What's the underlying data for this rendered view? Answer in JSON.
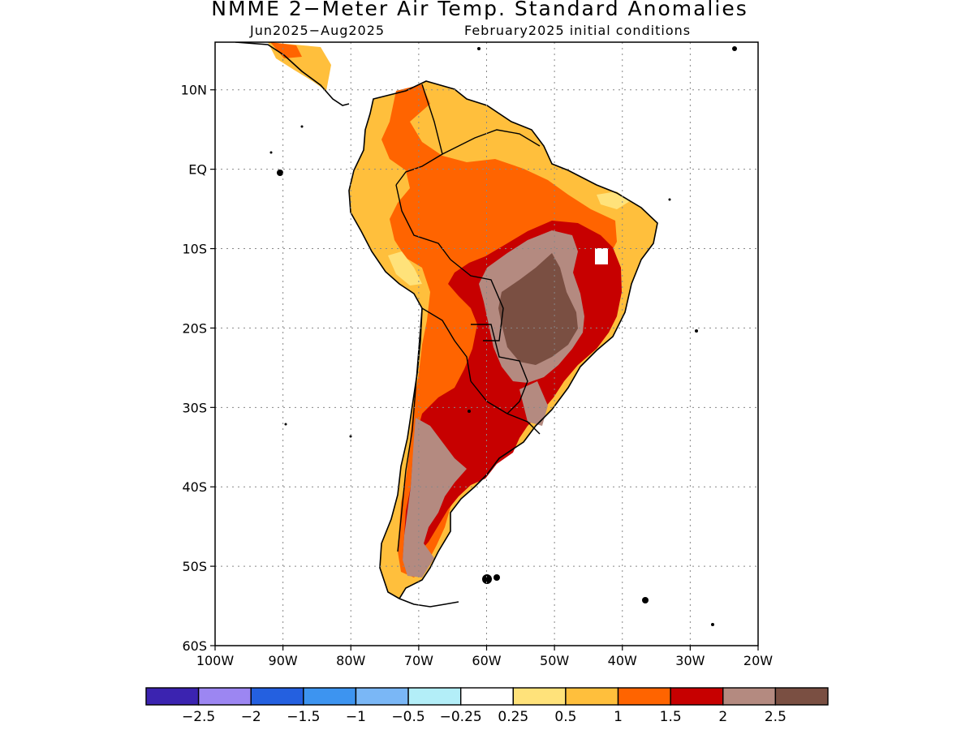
{
  "title": "NMME 2−Meter Air Temp. Standard Anomalies",
  "subtitle_period": "Jun2025−Aug2025",
  "subtitle_init": "February2025 initial conditions",
  "axes": {
    "lon_ticks": [
      "100W",
      "90W",
      "80W",
      "70W",
      "60W",
      "50W",
      "40W",
      "30W",
      "20W"
    ],
    "lat_ticks": [
      "10N",
      "EQ",
      "10S",
      "20S",
      "30S",
      "40S",
      "50S",
      "60S"
    ],
    "lon_range": [
      -100,
      -20
    ],
    "lat_range": [
      -60,
      16
    ],
    "grid": "dotted"
  },
  "colorbar": {
    "colors": [
      "#3b23b0",
      "#9c86f2",
      "#2460e0",
      "#3d94f0",
      "#7ab7f6",
      "#b3eef8",
      "#ffffff",
      "#ffe27a",
      "#ffbf3c",
      "#ff6400",
      "#c70000",
      "#b48a80",
      "#7a4f42"
    ],
    "labels": [
      "−2.5",
      "−2",
      "−1.5",
      "−1",
      "−0.5",
      "−0.25",
      "0.25",
      "0.5",
      "1",
      "1.5",
      "2",
      "2.5"
    ]
  },
  "legend_scale": "standard anomaly"
}
